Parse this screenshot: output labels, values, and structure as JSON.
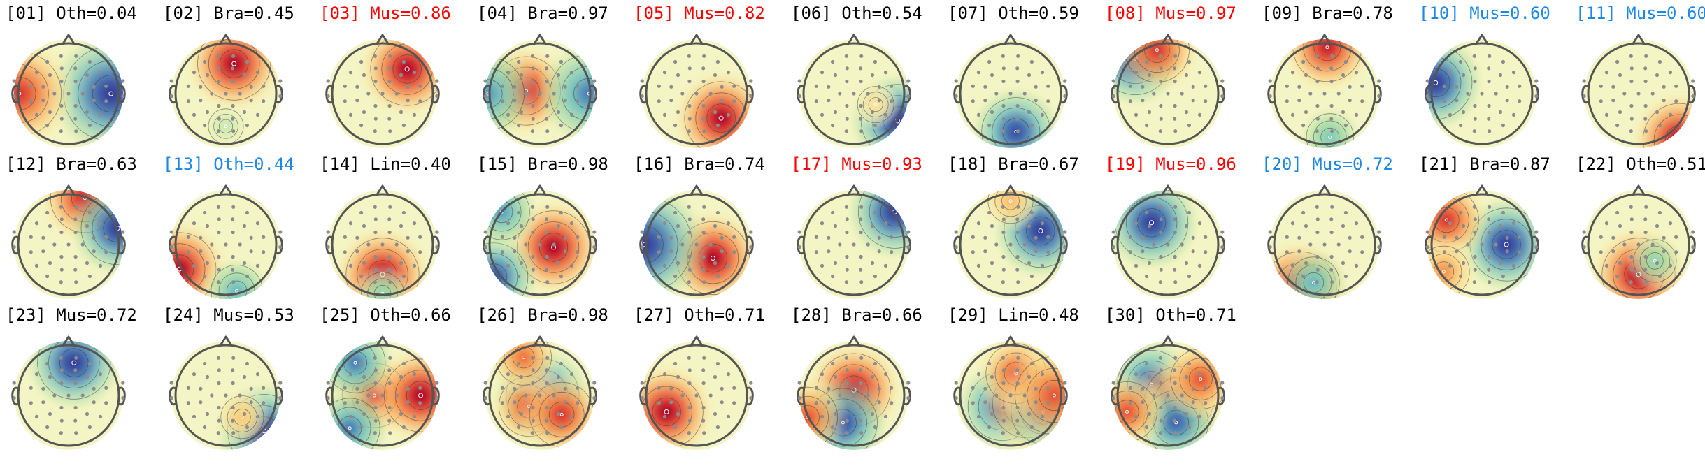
{
  "figure": {
    "colors": {
      "default": "#000000",
      "red": "#ff0000",
      "blue": "#1e88e5"
    },
    "components": [
      {
        "label": "[01] Oth=0.04",
        "color": "default",
        "sources": [
          [
            0.0,
            0.78,
            -1.0
          ],
          [
            0.0,
            -0.9,
            0.8
          ]
        ]
      },
      {
        "label": "[02] Bra=0.45",
        "color": "default",
        "sources": [
          [
            -0.55,
            0.15,
            1.0
          ],
          [
            0.6,
            0.0,
            -0.12
          ]
        ]
      },
      {
        "label": "[03] Mus=0.86",
        "color": "red",
        "sources": [
          [
            -0.45,
            0.45,
            1.0
          ]
        ]
      },
      {
        "label": "[04] Bra=0.97",
        "color": "default",
        "sources": [
          [
            -0.05,
            -0.25,
            0.9
          ],
          [
            0.0,
            0.9,
            -0.7
          ],
          [
            0.0,
            -0.95,
            -0.6
          ]
        ]
      },
      {
        "label": "[05] Mus=0.82",
        "color": "red",
        "sources": [
          [
            0.45,
            0.45,
            1.0
          ]
        ]
      },
      {
        "label": "[06] Oth=0.54",
        "color": "default",
        "sources": [
          [
            0.5,
            0.8,
            -1.0
          ],
          [
            0.2,
            0.4,
            0.15
          ]
        ]
      },
      {
        "label": "[07] Oth=0.59",
        "color": "default",
        "sources": [
          [
            0.7,
            0.1,
            -0.9
          ]
        ]
      },
      {
        "label": "[08] Mus=0.97",
        "color": "red",
        "sources": [
          [
            -0.65,
            -0.6,
            -1.0
          ],
          [
            -0.8,
            -0.2,
            0.8
          ]
        ]
      },
      {
        "label": "[09] Bra=0.78",
        "color": "default",
        "sources": [
          [
            -0.85,
            0.05,
            0.9
          ],
          [
            0.8,
            0.1,
            -0.4
          ]
        ]
      },
      {
        "label": "[10] Mus=0.60",
        "color": "blue",
        "sources": [
          [
            -0.2,
            -0.85,
            -1.0
          ]
        ]
      },
      {
        "label": "[11] Mus=0.60",
        "color": "blue",
        "sources": [
          [
            0.85,
            0.75,
            1.0
          ]
        ]
      },
      {
        "label": "[12] Bra=0.63",
        "color": "default",
        "sources": [
          [
            -0.85,
            0.3,
            0.9
          ],
          [
            -0.3,
            0.9,
            -1.0
          ]
        ]
      },
      {
        "label": "[13] Oth=0.44",
        "color": "blue",
        "sources": [
          [
            0.45,
            -0.85,
            1.0
          ],
          [
            0.85,
            0.2,
            -0.5
          ]
        ]
      },
      {
        "label": "[14] Lin=0.40",
        "color": "default",
        "sources": [
          [
            0.55,
            0.0,
            1.0
          ],
          [
            0.9,
            0.0,
            -0.3
          ]
        ]
      },
      {
        "label": "[15] Bra=0.98",
        "color": "default",
        "sources": [
          [
            0.05,
            0.25,
            1.0
          ],
          [
            0.6,
            -0.85,
            -0.9
          ],
          [
            -0.6,
            -0.7,
            -0.6
          ]
        ]
      },
      {
        "label": "[16] Bra=0.74",
        "color": "default",
        "sources": [
          [
            0.25,
            0.3,
            1.0
          ],
          [
            0.0,
            -0.95,
            -1.0
          ]
        ]
      },
      {
        "label": "[17] Mus=0.93",
        "color": "red",
        "sources": [
          [
            -0.6,
            0.75,
            -1.0
          ]
        ]
      },
      {
        "label": "[18] Bra=0.67",
        "color": "default",
        "sources": [
          [
            -0.25,
            0.55,
            -1.0
          ],
          [
            -0.8,
            0.0,
            0.35
          ]
        ]
      },
      {
        "label": "[19] Mus=0.96",
        "color": "red",
        "sources": [
          [
            -0.4,
            -0.3,
            -1.0
          ]
        ]
      },
      {
        "label": "[20] Mus=0.72",
        "color": "blue",
        "sources": [
          [
            0.8,
            -0.45,
            1.0
          ],
          [
            0.7,
            -0.2,
            -0.5
          ]
        ]
      },
      {
        "label": "[21] Bra=0.87",
        "color": "default",
        "sources": [
          [
            0.0,
            0.45,
            -1.0
          ],
          [
            -0.45,
            -0.65,
            0.8
          ],
          [
            0.5,
            -0.7,
            0.5
          ]
        ]
      },
      {
        "label": "[22] Oth=0.51",
        "color": "default",
        "sources": [
          [
            0.55,
            0.0,
            1.0
          ],
          [
            0.3,
            0.3,
            -0.3
          ]
        ]
      },
      {
        "label": "[23] Mus=0.72",
        "color": "default",
        "sources": [
          [
            -0.6,
            0.1,
            -1.0
          ]
        ]
      },
      {
        "label": "[24] Mus=0.53",
        "color": "default",
        "sources": [
          [
            0.65,
            0.7,
            -1.0
          ],
          [
            0.4,
            0.3,
            0.3
          ]
        ]
      },
      {
        "label": "[25] Oth=0.66",
        "color": "default",
        "sources": [
          [
            0.0,
            -0.15,
            0.8
          ],
          [
            -0.6,
            -0.5,
            -0.7
          ],
          [
            0.6,
            -0.6,
            -0.7
          ],
          [
            0.0,
            0.7,
            1.0
          ]
        ]
      },
      {
        "label": "[26] Bra=0.98",
        "color": "default",
        "sources": [
          [
            0.0,
            0.05,
            -1.0
          ],
          [
            0.2,
            -0.2,
            0.7
          ],
          [
            0.35,
            0.4,
            0.8
          ],
          [
            -0.7,
            -0.3,
            0.6
          ]
        ]
      },
      {
        "label": "[27] Oth=0.71",
        "color": "default",
        "sources": [
          [
            0.3,
            -0.55,
            1.0
          ]
        ]
      },
      {
        "label": "[28] Bra=0.66",
        "color": "default",
        "sources": [
          [
            -0.1,
            0.0,
            1.0
          ],
          [
            0.5,
            -0.2,
            -0.9
          ],
          [
            0.4,
            -0.85,
            0.7
          ]
        ]
      },
      {
        "label": "[29] Lin=0.48",
        "color": "default",
        "sources": [
          [
            0.2,
            -0.15,
            -0.9
          ],
          [
            0.15,
            0.3,
            0.9
          ],
          [
            0.3,
            0.6,
            -0.8
          ],
          [
            -0.4,
            0.1,
            0.7
          ],
          [
            0.0,
            0.8,
            0.7
          ]
        ]
      },
      {
        "label": "[30] Oth=0.71",
        "color": "default",
        "sources": [
          [
            -0.2,
            -0.3,
            -0.9
          ],
          [
            0.1,
            0.2,
            0.9
          ],
          [
            0.5,
            0.15,
            -0.8
          ],
          [
            -0.3,
            0.6,
            0.7
          ],
          [
            0.3,
            -0.75,
            0.7
          ]
        ]
      }
    ]
  }
}
